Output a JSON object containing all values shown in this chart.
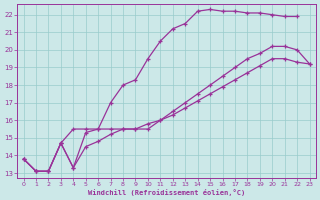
{
  "xlabel": "Windchill (Refroidissement éolien,°C)",
  "bg_color": "#cce8e8",
  "grid_color": "#99cccc",
  "line_color": "#993399",
  "xlim": [
    -0.5,
    23.5
  ],
  "ylim": [
    12.7,
    22.6
  ],
  "yticks": [
    13,
    14,
    15,
    16,
    17,
    18,
    19,
    20,
    21,
    22
  ],
  "xticks": [
    0,
    1,
    2,
    3,
    4,
    5,
    6,
    7,
    8,
    9,
    10,
    11,
    12,
    13,
    14,
    15,
    16,
    17,
    18,
    19,
    20,
    21,
    22,
    23
  ],
  "series": [
    {
      "x": [
        0,
        1,
        2,
        3,
        4,
        5,
        6,
        7,
        8,
        9,
        10,
        11,
        12,
        13,
        14,
        15,
        16,
        17,
        18,
        19,
        20,
        21,
        22
      ],
      "y": [
        13.8,
        13.1,
        13.1,
        14.7,
        13.3,
        15.3,
        15.5,
        17.0,
        18.0,
        18.3,
        19.5,
        20.5,
        21.2,
        21.5,
        22.2,
        22.3,
        22.2,
        22.2,
        22.1,
        22.1,
        22.0,
        21.9,
        21.9
      ]
    },
    {
      "x": [
        0,
        1,
        2,
        3,
        4,
        5,
        6,
        7,
        8,
        9,
        10,
        11,
        12,
        13,
        14,
        15,
        16,
        17,
        18,
        19,
        20,
        21,
        22,
        23
      ],
      "y": [
        13.8,
        13.1,
        13.1,
        14.7,
        15.5,
        15.5,
        15.5,
        15.5,
        15.5,
        15.5,
        15.5,
        16.0,
        16.5,
        17.0,
        17.5,
        18.0,
        18.5,
        19.0,
        19.5,
        19.8,
        20.2,
        20.2,
        20.0,
        19.2
      ]
    },
    {
      "x": [
        0,
        1,
        2,
        3,
        4,
        5,
        6,
        7,
        8,
        9,
        10,
        11,
        12,
        13,
        14,
        15,
        16,
        17,
        18,
        19,
        20,
        21,
        22,
        23
      ],
      "y": [
        13.8,
        13.1,
        13.1,
        14.7,
        13.3,
        14.5,
        14.8,
        15.2,
        15.5,
        15.5,
        15.8,
        16.0,
        16.3,
        16.7,
        17.1,
        17.5,
        17.9,
        18.3,
        18.7,
        19.1,
        19.5,
        19.5,
        19.3,
        19.2
      ]
    }
  ]
}
